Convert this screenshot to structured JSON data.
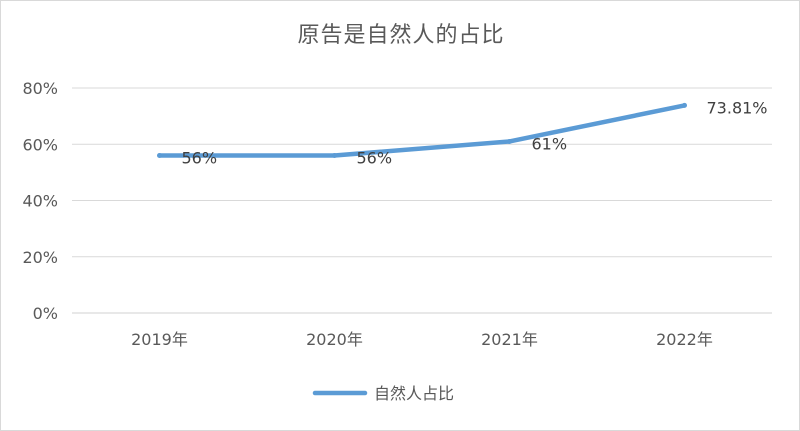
{
  "chart_data": {
    "type": "line",
    "title": "原告是自然人的占比",
    "categories": [
      "2019年",
      "2020年",
      "2021年",
      "2022年"
    ],
    "series": [
      {
        "name": "自然人占比",
        "values": [
          56,
          56,
          61,
          73.81
        ],
        "data_labels": [
          "56%",
          "56%",
          "61%",
          "73.81%"
        ],
        "color": "#5b9bd5"
      }
    ],
    "ylim": [
      0,
      80
    ],
    "yticks": [
      "0%",
      "20%",
      "40%",
      "60%",
      "80%"
    ],
    "grid": true,
    "legend": "bottom"
  }
}
